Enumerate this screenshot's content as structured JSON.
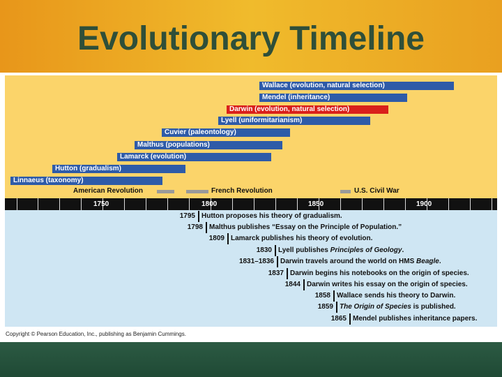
{
  "title": "Evolutionary Timeline",
  "axis_ticks": [
    "1750",
    "1800",
    "1850",
    "1900"
  ],
  "bars": [
    {
      "label": "Wallace (evolution, natural selection)",
      "highlight": false
    },
    {
      "label": "Mendel (inheritance)",
      "highlight": false
    },
    {
      "label": "Darwin (evolution, natural selection)",
      "highlight": true
    },
    {
      "label": "Lyell (uniformitarianism)",
      "highlight": false
    },
    {
      "label": "Cuvier (paleontology)",
      "highlight": false
    },
    {
      "label": "Malthus (populations)",
      "highlight": false
    },
    {
      "label": "Lamarck (evolution)",
      "highlight": false
    },
    {
      "label": "Hutton (gradualism)",
      "highlight": false
    },
    {
      "label": "Linnaeus (taxonomy)",
      "highlight": false
    }
  ],
  "eras": [
    {
      "label": "American Revolution"
    },
    {
      "label": "French Revolution"
    },
    {
      "label": "U.S. Civil War"
    }
  ],
  "events": [
    {
      "year": "1795",
      "text": "Hutton proposes his theory of gradualism."
    },
    {
      "year": "1798",
      "text": "Malthus publishes “Essay on the Principle of Population.”"
    },
    {
      "year": "1809",
      "text": "Lamarck publishes his theory of evolution."
    },
    {
      "year": "1830",
      "text_pre": "Lyell publishes ",
      "text_italic": "Principles of Geology",
      "text_post": "."
    },
    {
      "year": "1831–1836",
      "text_pre": "Darwin travels around the world on HMS ",
      "text_italic": "Beagle",
      "text_post": "."
    },
    {
      "year": "1837",
      "text": "Darwin begins his notebooks on the origin of species."
    },
    {
      "year": "1844",
      "text": "Darwin writes his essay on the origin of species."
    },
    {
      "year": "1858",
      "text": "Wallace sends his theory to Darwin."
    },
    {
      "year": "1859",
      "text_pre": "",
      "text_italic": "The Origin of Species",
      "text_post": " is published."
    },
    {
      "year": "1865",
      "text": "Mendel publishes inheritance papers."
    }
  ],
  "copyright": "Copyright © Pearson Education, Inc., publishing as Benjamin Cummings.",
  "colors": {
    "bar": "#2e5ba8",
    "highlight": "#d9201b",
    "upper_bg": "#fbd46a",
    "lower_bg": "#cfe6f3",
    "title": "#2f4f39"
  }
}
